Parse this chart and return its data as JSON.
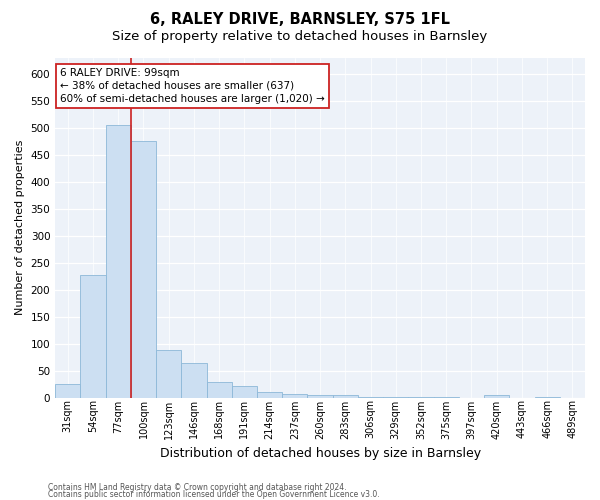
{
  "title1": "6, RALEY DRIVE, BARNSLEY, S75 1FL",
  "title2": "Size of property relative to detached houses in Barnsley",
  "xlabel": "Distribution of detached houses by size in Barnsley",
  "ylabel": "Number of detached properties",
  "categories": [
    "31sqm",
    "54sqm",
    "77sqm",
    "100sqm",
    "123sqm",
    "146sqm",
    "168sqm",
    "191sqm",
    "214sqm",
    "237sqm",
    "260sqm",
    "283sqm",
    "306sqm",
    "329sqm",
    "352sqm",
    "375sqm",
    "397sqm",
    "420sqm",
    "443sqm",
    "466sqm",
    "489sqm"
  ],
  "values": [
    25,
    228,
    505,
    475,
    88,
    65,
    30,
    22,
    11,
    8,
    6,
    5,
    1,
    2,
    1,
    1,
    0,
    5,
    0,
    1,
    0
  ],
  "bar_color": "#ccdff2",
  "bar_edge_color": "#8cb8d8",
  "property_line_color": "#cc2222",
  "annotation_line1": "6 RALEY DRIVE: 99sqm",
  "annotation_line2": "← 38% of detached houses are smaller (637)",
  "annotation_line3": "60% of semi-detached houses are larger (1,020) →",
  "annotation_box_color": "#ffffff",
  "annotation_box_edge": "#cc2222",
  "ylim": [
    0,
    630
  ],
  "yticks": [
    0,
    50,
    100,
    150,
    200,
    250,
    300,
    350,
    400,
    450,
    500,
    550,
    600
  ],
  "footer1": "Contains HM Land Registry data © Crown copyright and database right 2024.",
  "footer2": "Contains public sector information licensed under the Open Government Licence v3.0.",
  "bg_color": "#edf2f9",
  "title1_fontsize": 10.5,
  "title2_fontsize": 9.5,
  "ylabel_fontsize": 8,
  "xlabel_fontsize": 9,
  "tick_fontsize": 7,
  "ytick_fontsize": 7.5,
  "annotation_fontsize": 7.5,
  "footer_fontsize": 5.5
}
